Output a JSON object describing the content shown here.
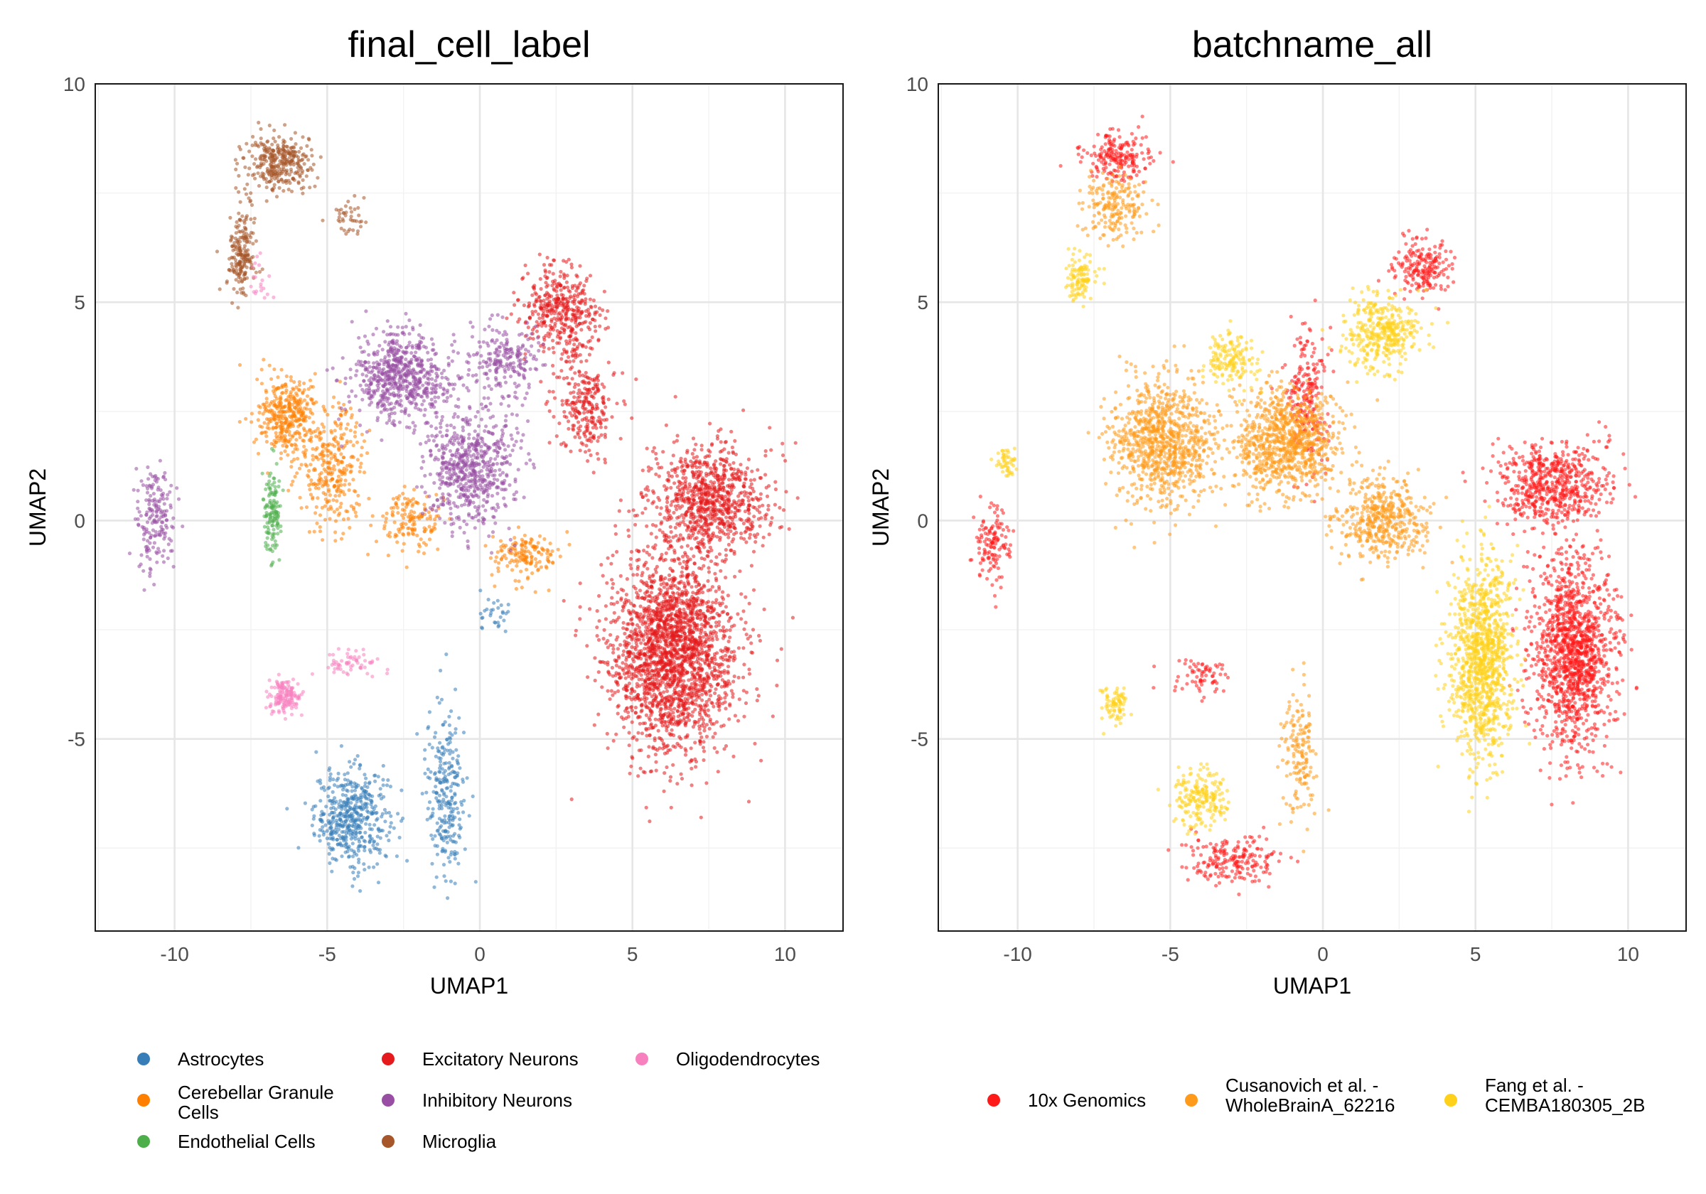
{
  "chart_data": [
    {
      "type": "scatter",
      "title": "final_cell_label",
      "xlabel": "UMAP1",
      "ylabel": "UMAP2",
      "xlim": [
        -12.6,
        11.9
      ],
      "ylim": [
        -9.4,
        10.0
      ],
      "x_ticks": [
        -10,
        -5,
        0,
        5,
        10
      ],
      "y_ticks": [
        -5,
        0,
        5,
        10
      ],
      "x_tick_labels": [
        "-10",
        "-5",
        "0",
        "5",
        "10"
      ],
      "y_tick_labels": [
        "-5",
        "0",
        "5",
        "10"
      ],
      "grid": true,
      "legend_position": "bottom",
      "series": [
        {
          "name": "Astrocytes",
          "color": "#377eb8",
          "clusters": [
            {
              "center": [
                -4.2,
                -6.8
              ],
              "spread": [
                1.1,
                1.0
              ],
              "n": 480
            },
            {
              "center": [
                -1.1,
                -6.2
              ],
              "spread": [
                0.6,
                1.8
              ],
              "n": 260
            },
            {
              "center": [
                0.5,
                -2.2
              ],
              "spread": [
                0.5,
                0.5
              ],
              "n": 30
            }
          ]
        },
        {
          "name": "Cerebellar Granule Cells",
          "color": "#ff7f00",
          "clusters": [
            {
              "center": [
                -6.3,
                2.4
              ],
              "spread": [
                0.9,
                0.8
              ],
              "n": 360
            },
            {
              "center": [
                -4.8,
                1.2
              ],
              "spread": [
                1.0,
                1.2
              ],
              "n": 300
            },
            {
              "center": [
                -2.2,
                0.0
              ],
              "spread": [
                0.9,
                0.6
              ],
              "n": 140
            },
            {
              "center": [
                1.5,
                -0.8
              ],
              "spread": [
                1.0,
                0.5
              ],
              "n": 150
            }
          ]
        },
        {
          "name": "Endothelial Cells",
          "color": "#4daf4a",
          "clusters": [
            {
              "center": [
                -6.8,
                0.2
              ],
              "spread": [
                0.25,
                0.9
              ],
              "n": 130
            }
          ]
        },
        {
          "name": "Excitatory Neurons",
          "color": "#e41a1c",
          "clusters": [
            {
              "center": [
                6.3,
                -3.0
              ],
              "spread": [
                1.9,
                2.0
              ],
              "n": 2200
            },
            {
              "center": [
                7.5,
                0.5
              ],
              "spread": [
                1.8,
                1.1
              ],
              "n": 850
            },
            {
              "center": [
                2.6,
                4.8
              ],
              "spread": [
                1.1,
                0.9
              ],
              "n": 420
            },
            {
              "center": [
                3.5,
                2.6
              ],
              "spread": [
                0.9,
                1.0
              ],
              "n": 260
            }
          ]
        },
        {
          "name": "Inhibitory Neurons",
          "color": "#984ea3",
          "clusters": [
            {
              "center": [
                -2.6,
                3.3
              ],
              "spread": [
                1.4,
                0.9
              ],
              "n": 650
            },
            {
              "center": [
                -0.3,
                1.2
              ],
              "spread": [
                1.3,
                1.2
              ],
              "n": 620
            },
            {
              "center": [
                0.8,
                3.6
              ],
              "spread": [
                1.1,
                0.8
              ],
              "n": 220
            },
            {
              "center": [
                -10.6,
                0.0
              ],
              "spread": [
                0.6,
                1.1
              ],
              "n": 180
            }
          ]
        },
        {
          "name": "Microglia",
          "color": "#a65628",
          "clusters": [
            {
              "center": [
                -6.6,
                8.2
              ],
              "spread": [
                1.0,
                0.6
              ],
              "n": 320
            },
            {
              "center": [
                -7.8,
                6.1
              ],
              "spread": [
                0.4,
                0.9
              ],
              "n": 200
            },
            {
              "center": [
                -4.2,
                6.9
              ],
              "spread": [
                0.6,
                0.4
              ],
              "n": 40
            }
          ]
        },
        {
          "name": "Oligodendrocytes",
          "color": "#f781bf",
          "clusters": [
            {
              "center": [
                -6.4,
                -4.0
              ],
              "spread": [
                0.5,
                0.4
              ],
              "n": 150
            },
            {
              "center": [
                -4.2,
                -3.3
              ],
              "spread": [
                1.0,
                0.3
              ],
              "n": 60
            },
            {
              "center": [
                -7.2,
                5.6
              ],
              "spread": [
                0.4,
                0.5
              ],
              "n": 20
            }
          ]
        }
      ]
    },
    {
      "type": "scatter",
      "title": "batchname_all",
      "xlabel": "UMAP1",
      "ylabel": "UMAP2",
      "xlim": [
        -12.6,
        11.9
      ],
      "ylim": [
        -9.4,
        10.0
      ],
      "x_ticks": [
        -10,
        -5,
        0,
        5,
        10
      ],
      "y_ticks": [
        -5,
        0,
        5,
        10
      ],
      "x_tick_labels": [
        "-10",
        "-5",
        "0",
        "5",
        "10"
      ],
      "y_tick_labels": [
        "-5",
        "0",
        "5",
        "10"
      ],
      "grid": true,
      "legend_position": "bottom",
      "series": [
        {
          "name": "10x Genomics",
          "color": "#ff1a1a",
          "clusters": [
            {
              "center": [
                8.2,
                -3.0
              ],
              "spread": [
                1.2,
                2.0
              ],
              "n": 1300
            },
            {
              "center": [
                7.5,
                0.8
              ],
              "spread": [
                1.6,
                0.9
              ],
              "n": 600
            },
            {
              "center": [
                3.3,
                5.8
              ],
              "spread": [
                0.9,
                0.6
              ],
              "n": 200
            },
            {
              "center": [
                -6.8,
                8.3
              ],
              "spread": [
                1.0,
                0.5
              ],
              "n": 200
            },
            {
              "center": [
                -10.8,
                -0.5
              ],
              "spread": [
                0.5,
                1.0
              ],
              "n": 130
            },
            {
              "center": [
                -3.0,
                -7.8
              ],
              "spread": [
                1.4,
                0.5
              ],
              "n": 200
            },
            {
              "center": [
                -0.5,
                2.8
              ],
              "spread": [
                0.6,
                1.4
              ],
              "n": 220
            },
            {
              "center": [
                -4.0,
                -3.6
              ],
              "spread": [
                0.9,
                0.4
              ],
              "n": 70
            }
          ]
        },
        {
          "name": "Cusanovich et al. - WholeBrainA_62216",
          "color": "#ff9a1a",
          "label_lines": [
            "Cusanovich et al. -",
            "WholeBrainA_62216"
          ],
          "clusters": [
            {
              "center": [
                -5.2,
                1.8
              ],
              "spread": [
                1.5,
                1.3
              ],
              "n": 900
            },
            {
              "center": [
                -1.2,
                1.8
              ],
              "spread": [
                1.6,
                1.1
              ],
              "n": 900
            },
            {
              "center": [
                2.0,
                0.0
              ],
              "spread": [
                1.4,
                0.8
              ],
              "n": 450
            },
            {
              "center": [
                -6.8,
                7.2
              ],
              "spread": [
                0.9,
                0.7
              ],
              "n": 200
            },
            {
              "center": [
                -0.8,
                -5.5
              ],
              "spread": [
                0.5,
                1.5
              ],
              "n": 160
            }
          ]
        },
        {
          "name": "Fang et al. - CEMBA180305_2B",
          "color": "#ffd11a",
          "label_lines": [
            "Fang et al. -",
            "CEMBA180305_2B"
          ],
          "clusters": [
            {
              "center": [
                5.2,
                -3.2
              ],
              "spread": [
                0.9,
                2.0
              ],
              "n": 1100
            },
            {
              "center": [
                2.0,
                4.3
              ],
              "spread": [
                1.0,
                0.8
              ],
              "n": 380
            },
            {
              "center": [
                -3.0,
                3.7
              ],
              "spread": [
                0.8,
                0.5
              ],
              "n": 160
            },
            {
              "center": [
                -8.0,
                5.5
              ],
              "spread": [
                0.4,
                0.5
              ],
              "n": 110
            },
            {
              "center": [
                -10.4,
                1.3
              ],
              "spread": [
                0.3,
                0.3
              ],
              "n": 50
            },
            {
              "center": [
                -4.0,
                -6.4
              ],
              "spread": [
                0.8,
                0.6
              ],
              "n": 200
            },
            {
              "center": [
                -6.8,
                -4.2
              ],
              "spread": [
                0.4,
                0.4
              ],
              "n": 80
            }
          ]
        }
      ]
    }
  ]
}
